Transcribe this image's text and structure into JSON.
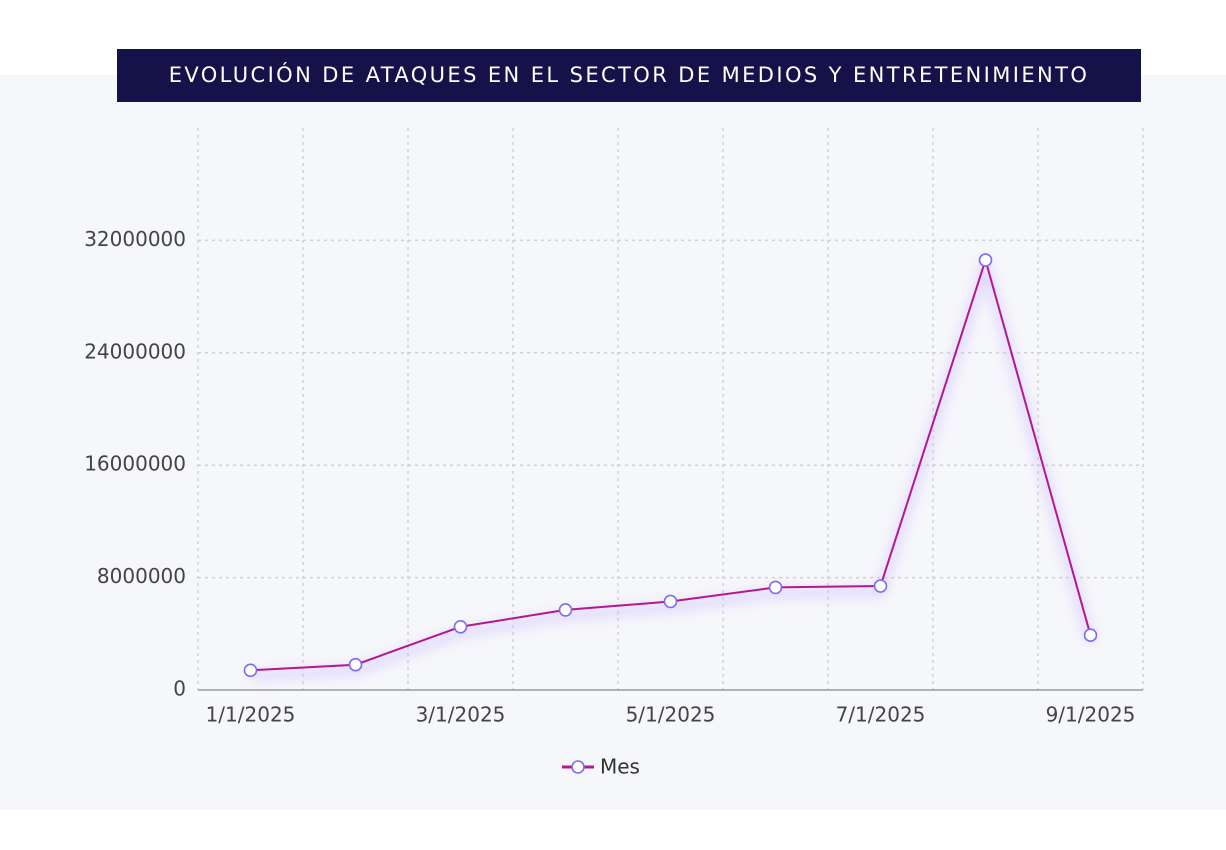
{
  "chart_data": {
    "type": "line",
    "title": "EVOLUCIÓN DE ATAQUES EN EL SECTOR DE MEDIOS Y ENTRETENIMIENTO",
    "categories": [
      "1/1/2025",
      null,
      "3/1/2025",
      null,
      "5/1/2025",
      null,
      "7/1/2025",
      null,
      "9/1/2025"
    ],
    "series": [
      {
        "name": "Mes",
        "color": "#b5178f",
        "marker_color": "#7b6cf0",
        "values": [
          1400000,
          1800000,
          4500000,
          5700000,
          6300000,
          7300000,
          7400000,
          30600000,
          3900000
        ]
      }
    ],
    "ylim": [
      0,
      40000000
    ],
    "yticks": [
      0,
      8000000,
      16000000,
      24000000,
      32000000
    ],
    "grid": true,
    "legend": "bottom"
  }
}
